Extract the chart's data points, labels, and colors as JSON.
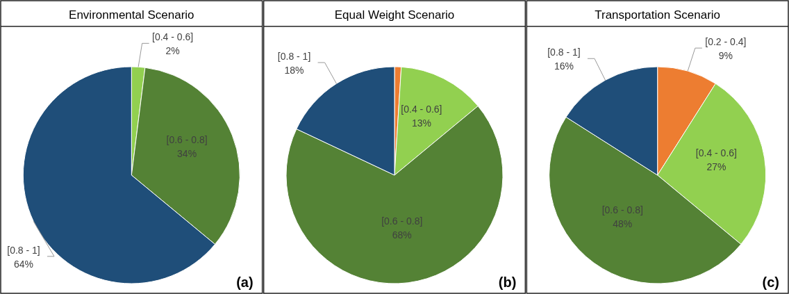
{
  "chart_data": [
    {
      "type": "pie",
      "title": "Environmental Scenario",
      "categories": [
        "[0.4 - 0.6]",
        "[0.6 - 0.8]",
        "[0.8 - 1]"
      ],
      "values": [
        2,
        34,
        64
      ],
      "value_labels": [
        "2%",
        "34%",
        "64%"
      ],
      "colors": [
        "#92d050",
        "#548235",
        "#1f4e79"
      ],
      "annotations": [
        "(a)"
      ]
    },
    {
      "type": "pie",
      "title": "Equal Weight Scenario",
      "categories": [
        null,
        "[0.4 - 0.6]",
        "[0.6 - 0.8]",
        "[0.8 - 1]"
      ],
      "values": [
        1,
        13,
        68,
        18
      ],
      "value_labels": [
        null,
        "13%",
        "68%",
        "18%"
      ],
      "colors": [
        "#ed7d31",
        "#92d050",
        "#548235",
        "#1f4e79"
      ],
      "annotations": [
        "(b)"
      ]
    },
    {
      "type": "pie",
      "title": "Transportation Scenario",
      "categories": [
        "[0.2 - 0.4]",
        "[0.4 - 0.6]",
        "[0.6 - 0.8]",
        "[0.8 - 1]"
      ],
      "values": [
        9,
        27,
        48,
        16
      ],
      "value_labels": [
        "9%",
        "27%",
        "48%",
        "16%"
      ],
      "colors": [
        "#ed7d31",
        "#92d050",
        "#548235",
        "#1f4e79"
      ],
      "annotations": [
        "(c)"
      ]
    }
  ]
}
